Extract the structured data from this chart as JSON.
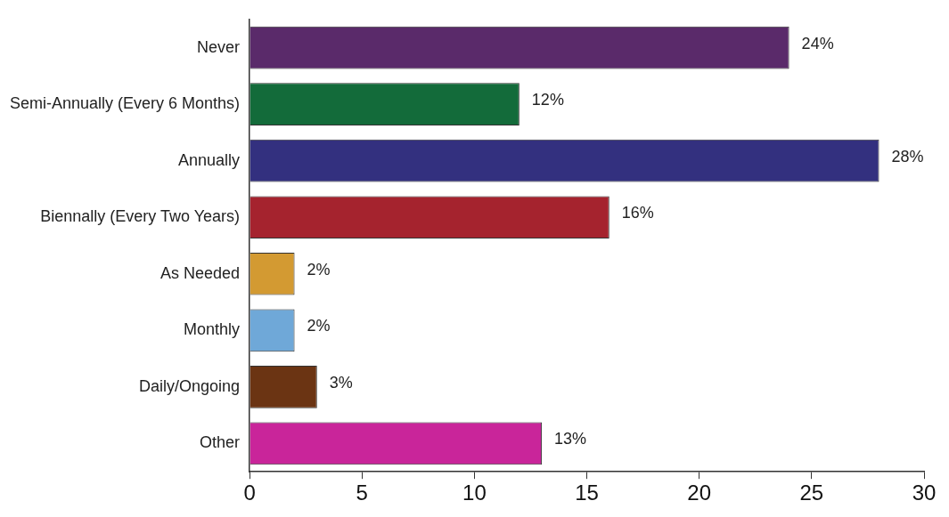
{
  "chart_data": {
    "type": "bar",
    "orientation": "horizontal",
    "categories": [
      "Never",
      "Semi-Annually (Every 6 Months)",
      "Annually",
      "Biennally (Every Two Years)",
      "As Needed",
      "Monthly",
      "Daily/Ongoing",
      "Other"
    ],
    "values": [
      24,
      12,
      28,
      16,
      2,
      2,
      3,
      13
    ],
    "colors": [
      "#5a2a6a",
      "#136b3a",
      "#33307f",
      "#a5232e",
      "#d39a32",
      "#6fa8d8",
      "#6b3413",
      "#c9259a"
    ],
    "value_labels": [
      "24%",
      "12%",
      "28%",
      "16%",
      "2%",
      "2%",
      "3%",
      "13%"
    ],
    "xlim": [
      0,
      30
    ],
    "xticks": [
      0,
      5,
      10,
      15,
      20,
      25,
      30
    ],
    "grid": false,
    "legend": false
  }
}
